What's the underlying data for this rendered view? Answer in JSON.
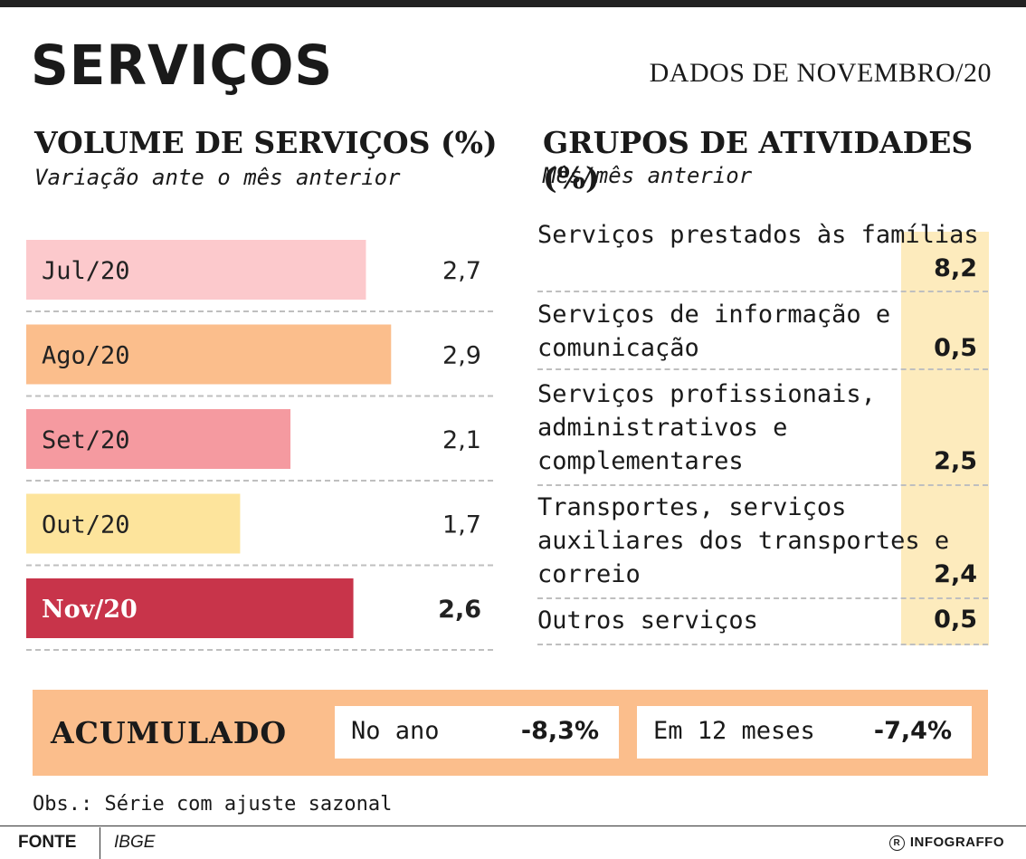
{
  "header": {
    "title": "SERVIÇOS",
    "dateline": "DADOS DE NOVEMBRO/20"
  },
  "left_section": {
    "title": "VOLUME DE SERVIÇOS (%)",
    "subtitle": "Variação ante o mês anterior"
  },
  "right_section": {
    "title": "GRUPOS DE ATIVIDADES (%)",
    "subtitle": "Mês/mês anterior",
    "groups": [
      {
        "label": "Serviços prestados às famílias",
        "value": "8,2"
      },
      {
        "label": "Serviços de informação e comunicação",
        "value": "0,5"
      },
      {
        "label": "Serviços profissionais, administrativos e complementares",
        "value": "2,5"
      },
      {
        "label": "Transportes, serviços auxiliares dos transportes e correio",
        "value": "2,4"
      },
      {
        "label": "Outros serviços",
        "value": "0,5"
      }
    ]
  },
  "chart_data": {
    "type": "bar",
    "orientation": "horizontal",
    "title": "VOLUME DE SERVIÇOS (%)",
    "subtitle": "Variação ante o mês anterior",
    "categories": [
      "Jul/20",
      "Ago/20",
      "Set/20",
      "Out/20",
      "Nov/20"
    ],
    "values": [
      2.7,
      2.9,
      2.1,
      1.7,
      2.6
    ],
    "value_labels": [
      "2,7",
      "2,9",
      "2,1",
      "1,7",
      "2,6"
    ],
    "bar_colors": [
      "#fcc9cc",
      "#fbbe8c",
      "#f59aa0",
      "#fde49c",
      "#c8344a"
    ],
    "highlight": "Nov/20",
    "xlim": [
      0,
      3.2
    ]
  },
  "accumulated": {
    "label": "ACUMULADO",
    "items": [
      {
        "label": "No ano",
        "value": "-8,3%"
      },
      {
        "label": "Em 12 meses",
        "value": "-7,4%"
      }
    ]
  },
  "note": "Obs.: Série com ajuste sazonal",
  "footer": {
    "source_label": "FONTE",
    "source": "IBGE",
    "credit": "INFOGRAFFO"
  },
  "colors": {
    "band": "#fdebbd",
    "accumulated_box": "#fbbe8c",
    "highlight": "#c8344a"
  }
}
